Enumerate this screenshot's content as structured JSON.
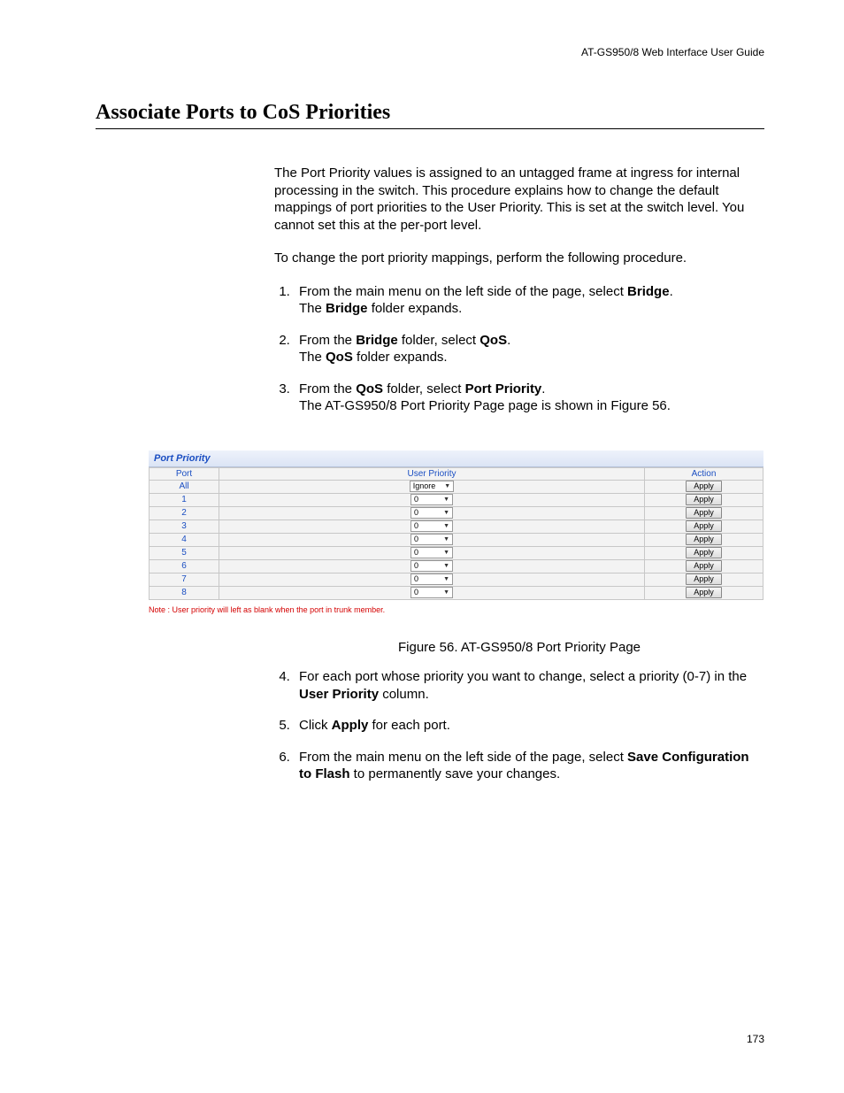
{
  "header": "AT-GS950/8  Web Interface User Guide",
  "title": "Associate Ports to CoS Priorities",
  "intro": "The Port Priority values is assigned to an untagged frame at ingress for internal processing in the switch. This procedure explains how to change the default mappings of port priorities to the User Priority. This is set at the switch level. You cannot set this at the per-port level.",
  "lead": "To change the port priority mappings, perform the following procedure.",
  "steps": {
    "s1a": "From the main menu on the left side of the page, select ",
    "s1b": "Bridge",
    "s1c": ".",
    "s1d": "The ",
    "s1e": "Bridge",
    "s1f": " folder expands.",
    "s2a": "From the ",
    "s2b": "Bridge",
    "s2c": " folder, select ",
    "s2d": "QoS",
    "s2e": ".",
    "s2f": "The ",
    "s2g": "QoS",
    "s2h": " folder expands.",
    "s3a": "From the ",
    "s3b": "QoS",
    "s3c": " folder, select ",
    "s3d": "Port Priority",
    "s3e": ".",
    "s3f": "The AT-GS950/8 Port Priority Page page is shown in Figure 56.",
    "s4a": "For each port whose priority you want to change, select a priority (0-7) in the ",
    "s4b": "User Priority",
    "s4c": " column.",
    "s5a": "Click ",
    "s5b": "Apply",
    "s5c": " for each port.",
    "s6a": "From the main menu on the left side of the page, select ",
    "s6b": "Save Configuration to Flash",
    "s6c": " to permanently save your changes."
  },
  "figure": {
    "panel_title": "Port Priority",
    "columns": {
      "port": "Port",
      "user_priority": "User Priority",
      "action": "Action"
    },
    "rows": [
      {
        "port": "All",
        "value": "Ignore",
        "action": "Apply"
      },
      {
        "port": "1",
        "value": "0",
        "action": "Apply"
      },
      {
        "port": "2",
        "value": "0",
        "action": "Apply"
      },
      {
        "port": "3",
        "value": "0",
        "action": "Apply"
      },
      {
        "port": "4",
        "value": "0",
        "action": "Apply"
      },
      {
        "port": "5",
        "value": "0",
        "action": "Apply"
      },
      {
        "port": "6",
        "value": "0",
        "action": "Apply"
      },
      {
        "port": "7",
        "value": "0",
        "action": "Apply"
      },
      {
        "port": "8",
        "value": "0",
        "action": "Apply"
      }
    ],
    "note": "Note : User priority will left as blank when the port in trunk member.",
    "caption": "Figure 56. AT-GS950/8 Port Priority Page"
  },
  "page_number": "173"
}
